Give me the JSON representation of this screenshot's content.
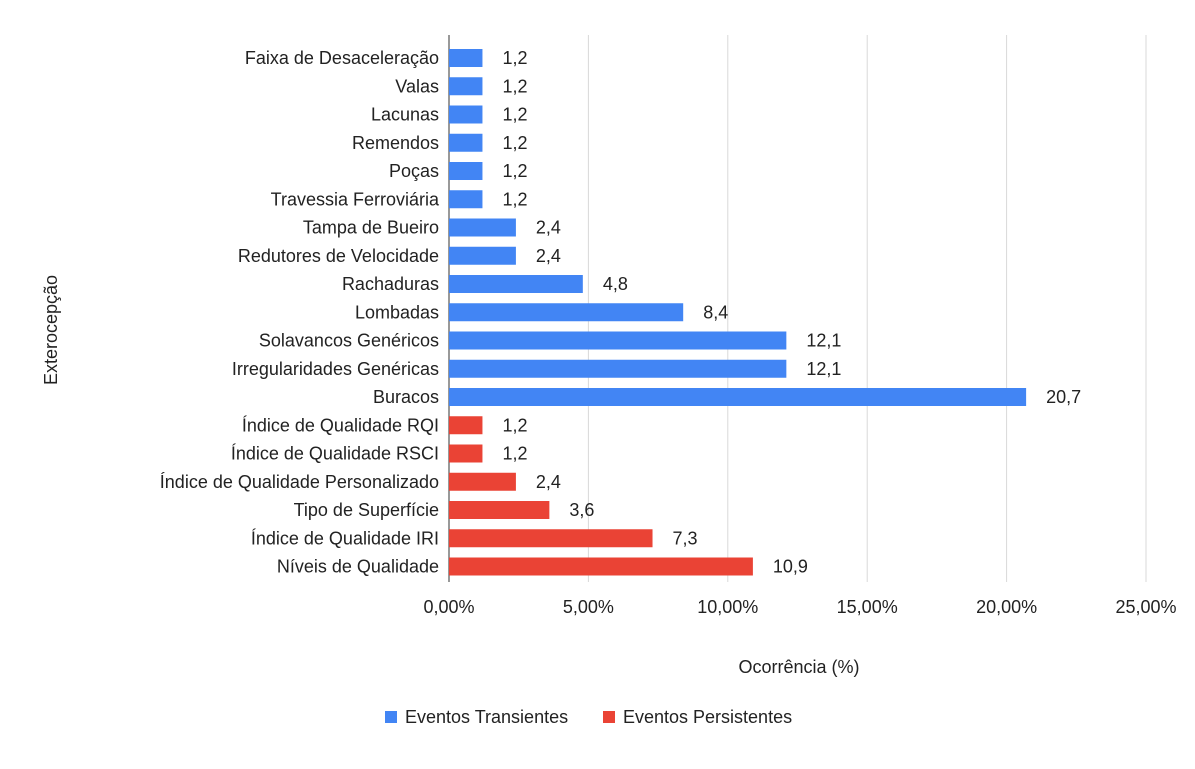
{
  "chart_data": {
    "type": "bar",
    "orientation": "horizontal",
    "title": "",
    "xlabel": "Ocorrência (%)",
    "ylabel": "Exterocepção",
    "xlim": [
      0,
      25
    ],
    "x_ticks": [
      {
        "value": 0,
        "label": "0,00%"
      },
      {
        "value": 5,
        "label": "5,00%"
      },
      {
        "value": 10,
        "label": "10,00%"
      },
      {
        "value": 15,
        "label": "15,00%"
      },
      {
        "value": 20,
        "label": "20,00%"
      },
      {
        "value": 25,
        "label": "25,00%"
      }
    ],
    "grid": true,
    "legend_position": "bottom",
    "series": [
      {
        "name": "Eventos Transientes",
        "color": "#4285f4"
      },
      {
        "name": "Eventos Persistentes",
        "color": "#ea4335"
      }
    ],
    "bars": [
      {
        "category": "Faixa de Desaceleração",
        "value": 1.2,
        "label": "1,2",
        "series": 0
      },
      {
        "category": "Valas",
        "value": 1.2,
        "label": "1,2",
        "series": 0
      },
      {
        "category": "Lacunas",
        "value": 1.2,
        "label": "1,2",
        "series": 0
      },
      {
        "category": "Remendos",
        "value": 1.2,
        "label": "1,2",
        "series": 0
      },
      {
        "category": "Poças",
        "value": 1.2,
        "label": "1,2",
        "series": 0
      },
      {
        "category": "Travessia Ferroviária",
        "value": 1.2,
        "label": "1,2",
        "series": 0
      },
      {
        "category": "Tampa de Bueiro",
        "value": 2.4,
        "label": "2,4",
        "series": 0
      },
      {
        "category": "Redutores de Velocidade",
        "value": 2.4,
        "label": "2,4",
        "series": 0
      },
      {
        "category": "Rachaduras",
        "value": 4.8,
        "label": "4,8",
        "series": 0
      },
      {
        "category": "Lombadas",
        "value": 8.4,
        "label": "8,4",
        "series": 0
      },
      {
        "category": "Solavancos Genéricos",
        "value": 12.1,
        "label": "12,1",
        "series": 0
      },
      {
        "category": "Irregularidades Genéricas",
        "value": 12.1,
        "label": "12,1",
        "series": 0
      },
      {
        "category": "Buracos",
        "value": 20.7,
        "label": "20,7",
        "series": 0
      },
      {
        "category": "Índice de Qualidade RQI",
        "value": 1.2,
        "label": "1,2",
        "series": 1
      },
      {
        "category": "Índice de Qualidade RSCI",
        "value": 1.2,
        "label": "1,2",
        "series": 1
      },
      {
        "category": "Índice de Qualidade Personalizado",
        "value": 2.4,
        "label": "2,4",
        "series": 1
      },
      {
        "category": "Tipo de Superfície",
        "value": 3.6,
        "label": "3,6",
        "series": 1
      },
      {
        "category": "Índice de Qualidade IRI",
        "value": 7.3,
        "label": "7,3",
        "series": 1
      },
      {
        "category": "Níveis de Qualidade",
        "value": 10.9,
        "label": "10,9",
        "series": 1
      }
    ]
  }
}
